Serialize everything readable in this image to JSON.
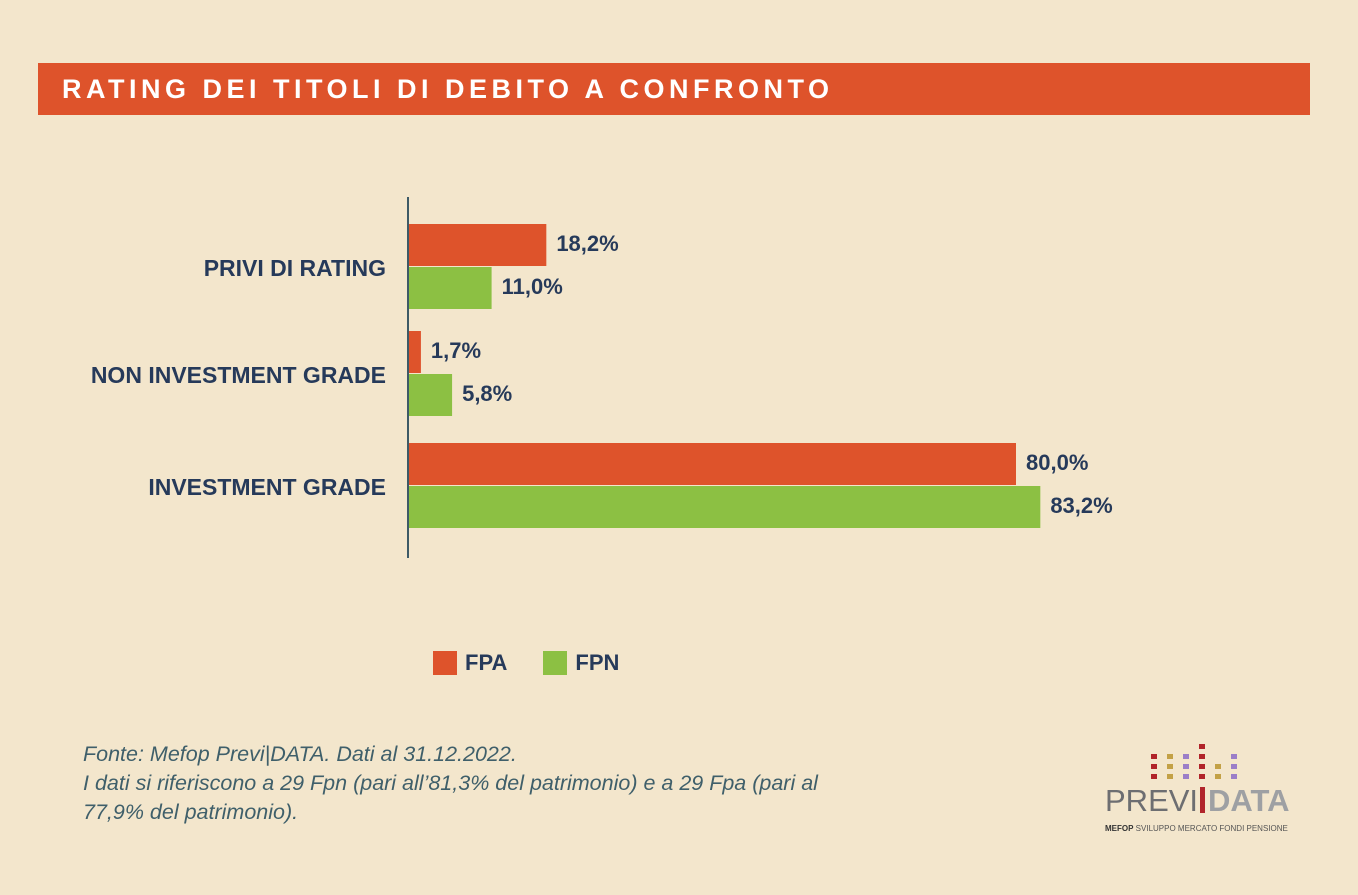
{
  "title": "RATING DEI TITOLI DI DEBITO A CONFRONTO",
  "colors": {
    "background": "#f3e6cc",
    "title_bar": "#de532b",
    "fpa": "#de532b",
    "fpn": "#8cc043",
    "text": "#263a5a",
    "axis": "#3d5a66"
  },
  "chart_data": {
    "type": "bar",
    "orientation": "horizontal",
    "categories": [
      "PRIVI DI RATING",
      "NON INVESTMENT GRADE",
      "INVESTMENT GRADE"
    ],
    "series": [
      {
        "name": "FPA",
        "values": [
          18.2,
          1.7,
          80.0
        ],
        "labels": [
          "18,2%",
          "1,7%",
          "80,0%"
        ]
      },
      {
        "name": "FPN",
        "values": [
          11.0,
          5.8,
          83.2
        ],
        "labels": [
          "11,0%",
          "5,8%",
          "83,2%"
        ]
      }
    ],
    "xlim": [
      0,
      100
    ],
    "xlabel": "",
    "ylabel": "",
    "grid": false,
    "legend_position": "bottom"
  },
  "legend": [
    {
      "label": "FPA"
    },
    {
      "label": "FPN"
    }
  ],
  "footnote": {
    "line1": "Fonte: Mefop Previ|DATA. Dati al 31.12.2022.",
    "line2": "I dati si riferiscono a 29 Fpn (pari all’81,3% del patrimonio) e a 29 Fpa (pari al",
    "line3": "77,9% del patrimonio)."
  },
  "logo": {
    "part1": "PREVI",
    "part2": "DATA",
    "tag_bold": "MEFOP",
    "tag_rest": " SVILUPPO MERCATO FONDI PENSIONE"
  }
}
